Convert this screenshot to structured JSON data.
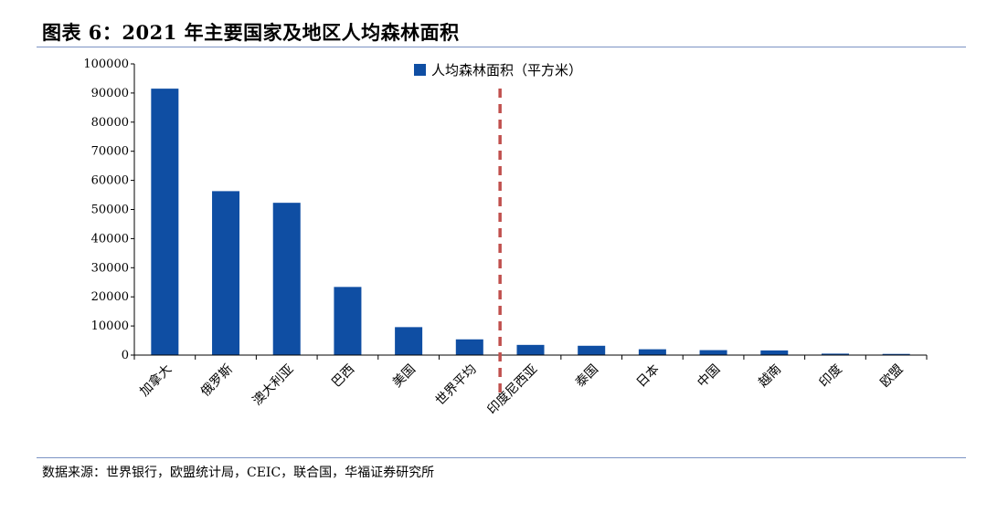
{
  "header": {
    "title": "图表 6：2021 年主要国家及地区人均森林面积"
  },
  "footer": {
    "source": "数据来源：世界银行，欧盟统计局，CEIC，联合国，华福证券研究所"
  },
  "colors": {
    "bar": "#0f4ea3",
    "divider": "#c0504d",
    "rule": "#7b93c4",
    "axis": "#000000"
  },
  "chart_data": {
    "type": "bar",
    "title": "",
    "xlabel": "",
    "ylabel": "",
    "ylim": [
      0,
      100000
    ],
    "yticks": [
      "0",
      "10000",
      "20000",
      "30000",
      "40000",
      "50000",
      "60000",
      "70000",
      "80000",
      "90000",
      "100000"
    ],
    "categories": [
      "加拿大",
      "俄罗斯",
      "澳大利亚",
      "巴西",
      "美国",
      "世界平均",
      "印度尼西亚",
      "泰国",
      "日本",
      "中国",
      "越南",
      "印度",
      "欧盟"
    ],
    "series": [
      {
        "name": "人均森林面积（平方米）",
        "values": [
          91500,
          56300,
          52300,
          23400,
          9600,
          5400,
          3500,
          3200,
          2000,
          1700,
          1600,
          500,
          400
        ]
      }
    ],
    "legend_position": "top-center",
    "grid": false,
    "divider_after_category": "世界平均",
    "divider_style": "dashed"
  }
}
